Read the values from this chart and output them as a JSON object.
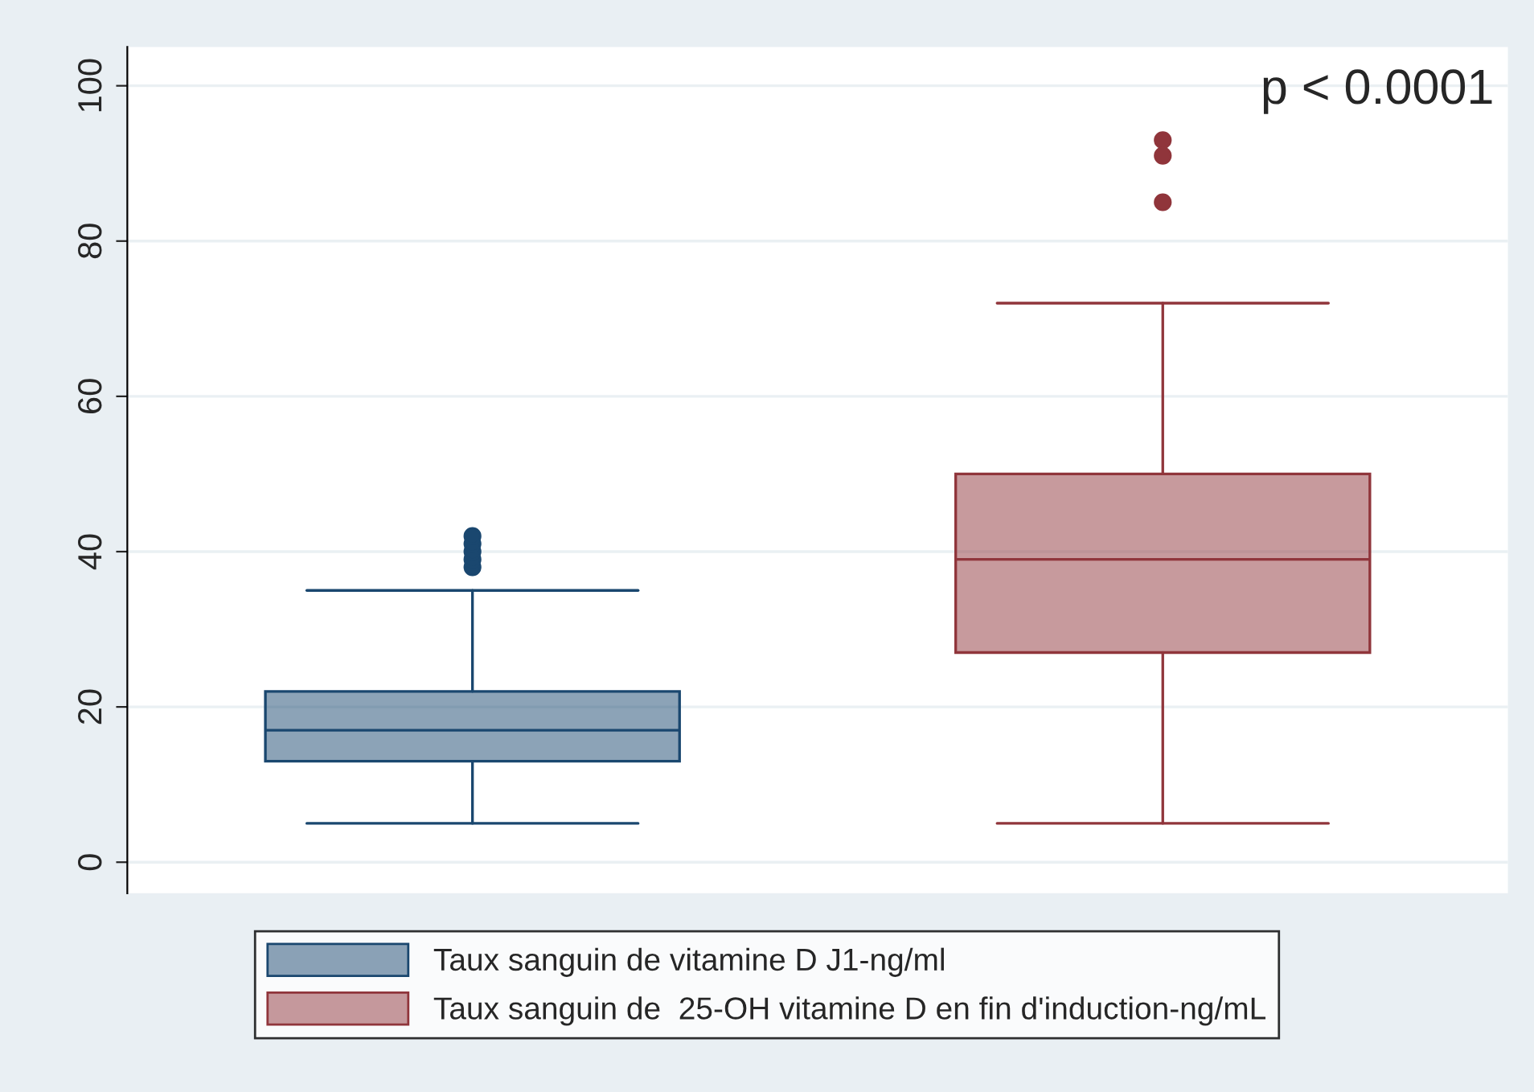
{
  "chart_data": {
    "type": "box",
    "categories": [
      null,
      null
    ],
    "series": [
      {
        "name": "Taux sanguin de vitamine D J1-ng/ml",
        "color": "#1a476f",
        "boxes": [
          {
            "low": 5,
            "q1": 13,
            "median": 17,
            "q3": 22,
            "high": 35,
            "outliers": [
              38,
              39,
              40,
              41,
              42
            ]
          },
          null
        ]
      },
      {
        "name": "Taux sanguin de  25-OH vitamine D en fin d'induction-ng/mL",
        "color": "#90353b",
        "boxes": [
          null,
          {
            "low": 5,
            "q1": 27,
            "median": 39,
            "q3": 50,
            "high": 72,
            "outliers": [
              85,
              91,
              93
            ]
          }
        ]
      }
    ],
    "ylim": [
      -4,
      105
    ],
    "yticks": [
      0,
      20,
      40,
      60,
      80,
      100
    ],
    "grid": "y",
    "legend": "bottom",
    "annotations": [
      "p < 0.0001"
    ]
  }
}
